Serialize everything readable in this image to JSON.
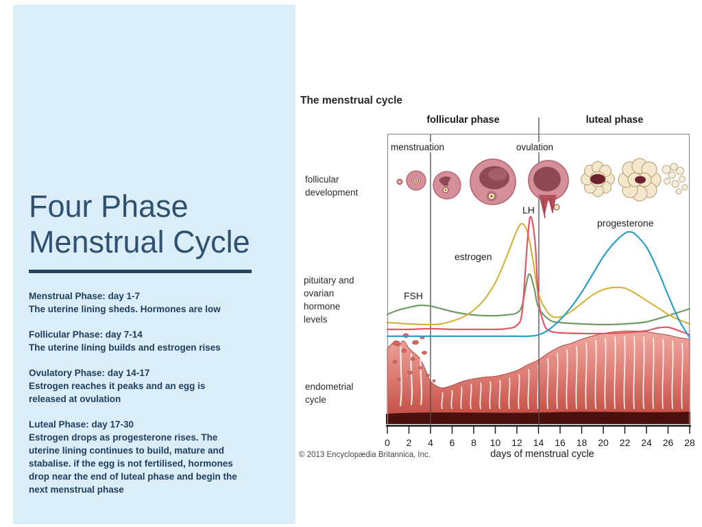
{
  "slide": {
    "panel_bg": "#dbedf9",
    "title_line1": "Four Phase",
    "title_line2": "Menstrual Cycle",
    "title_color": "#2f516d",
    "underline_color": "#22415e",
    "text_color": "#1d3d5b",
    "phases": [
      {
        "heading": "Menstrual Phase: day 1-7",
        "body": "The uterine lining sheds. Hormones are low"
      },
      {
        "heading": "Follicular Phase: day 7-14",
        "body": "The uterine lining builds and estrogen rises"
      },
      {
        "heading": "Ovulatory Phase: day 14-17",
        "body": "Estrogen reaches it peaks and an egg is released at ovulation"
      },
      {
        "heading": "Luteal Phase: day 17-30",
        "body": "Estrogen drops as progesterone rises. The uterine lining continues to build, mature and stabalise. if the egg is not fertilised, hormones drop near the end of luteal phase and begin the next menstrual phase"
      }
    ]
  },
  "diagram": {
    "title": "The menstrual cycle",
    "phase_labels": {
      "follicular": "follicular phase",
      "luteal": "luteal phase"
    },
    "event_labels": {
      "menstruation": "menstruation",
      "ovulation": "ovulation"
    },
    "row_labels": {
      "follicular": "follicular development",
      "hormones": "pituitary and ovarian hormone levels",
      "endometrial": "endometrial cycle"
    },
    "hormone_labels": {
      "fsh": "FSH",
      "estrogen": "estrogen",
      "lh": "LH",
      "progesterone": "progesterone"
    },
    "x_axis_label": "days of menstrual cycle",
    "copyright": "© 2013 Encyclopædia Britannica, Inc."
  },
  "chart_data": {
    "type": "line",
    "title": "The menstrual cycle",
    "xlabel": "days of menstrual cycle",
    "x_range": [
      0,
      28
    ],
    "x_ticks": [
      0,
      2,
      4,
      6,
      8,
      10,
      12,
      14,
      16,
      18,
      20,
      22,
      24,
      26,
      28
    ],
    "ylabel": "relative hormone level (axis unlabeled)",
    "grid": false,
    "event_markers": [
      {
        "day": 4,
        "label": "end of menstruation"
      },
      {
        "day": 14,
        "label": "ovulation"
      }
    ],
    "phases": [
      {
        "label": "follicular phase",
        "range": [
          0,
          14
        ]
      },
      {
        "label": "luteal phase",
        "range": [
          14,
          28
        ]
      }
    ],
    "series": [
      {
        "name": "FSH",
        "color": "#6f9a63",
        "points": [
          [
            0,
            19
          ],
          [
            1,
            22
          ],
          [
            2,
            24
          ],
          [
            3,
            25.5
          ],
          [
            4,
            25
          ],
          [
            5,
            23
          ],
          [
            6,
            21
          ],
          [
            7,
            19.5
          ],
          [
            8,
            18.5
          ],
          [
            9,
            18
          ],
          [
            10,
            18
          ],
          [
            11,
            18.5
          ],
          [
            12,
            20
          ],
          [
            12.5,
            26
          ],
          [
            13.1,
            48
          ],
          [
            13.6,
            38
          ],
          [
            14,
            24
          ],
          [
            15,
            15
          ],
          [
            16,
            13
          ],
          [
            18,
            12
          ],
          [
            20,
            11.5
          ],
          [
            22,
            12
          ],
          [
            24,
            13.5
          ],
          [
            26,
            18
          ],
          [
            28,
            23
          ]
        ]
      },
      {
        "name": "estrogen",
        "color": "#d8b33c",
        "points": [
          [
            0,
            13
          ],
          [
            2,
            12
          ],
          [
            4,
            11.5
          ],
          [
            5,
            12
          ],
          [
            6,
            14
          ],
          [
            7,
            17
          ],
          [
            8,
            22
          ],
          [
            9,
            30
          ],
          [
            10,
            42
          ],
          [
            11,
            60
          ],
          [
            12,
            80
          ],
          [
            12.5,
            85
          ],
          [
            13,
            78
          ],
          [
            13.5,
            58
          ],
          [
            14,
            34
          ],
          [
            15,
            19
          ],
          [
            16,
            17
          ],
          [
            17,
            21
          ],
          [
            18,
            27
          ],
          [
            19,
            33
          ],
          [
            20,
            37
          ],
          [
            21,
            38.5
          ],
          [
            22,
            38
          ],
          [
            23,
            34
          ],
          [
            24,
            29
          ],
          [
            25,
            24
          ],
          [
            26,
            19
          ],
          [
            27,
            15
          ],
          [
            28,
            12
          ]
        ]
      },
      {
        "name": "LH",
        "color": "#e25565",
        "points": [
          [
            0,
            8
          ],
          [
            2,
            8
          ],
          [
            4,
            8.5
          ],
          [
            6,
            8
          ],
          [
            8,
            8
          ],
          [
            10,
            8
          ],
          [
            11,
            8.5
          ],
          [
            12,
            11
          ],
          [
            12.5,
            22
          ],
          [
            13,
            75
          ],
          [
            13.3,
            90
          ],
          [
            13.7,
            70
          ],
          [
            14,
            30
          ],
          [
            14.5,
            12
          ],
          [
            15,
            7
          ],
          [
            16,
            5.5
          ],
          [
            18,
            5
          ],
          [
            20,
            5
          ],
          [
            22,
            5.5
          ],
          [
            24,
            7
          ],
          [
            25,
            9
          ],
          [
            26,
            9.5
          ],
          [
            27,
            7
          ],
          [
            28,
            4
          ]
        ]
      },
      {
        "name": "progesterone",
        "color": "#2a9cc7",
        "points": [
          [
            0,
            3
          ],
          [
            2,
            3
          ],
          [
            4,
            3
          ],
          [
            6,
            3
          ],
          [
            8,
            3
          ],
          [
            10,
            3
          ],
          [
            12,
            3
          ],
          [
            13,
            3
          ],
          [
            14,
            4
          ],
          [
            15,
            8
          ],
          [
            16,
            15
          ],
          [
            17,
            24
          ],
          [
            18,
            35
          ],
          [
            19,
            48
          ],
          [
            20,
            61
          ],
          [
            21,
            71
          ],
          [
            22,
            78
          ],
          [
            22.5,
            79
          ],
          [
            23,
            77
          ],
          [
            24,
            68
          ],
          [
            25,
            52
          ],
          [
            26,
            33
          ],
          [
            27,
            15
          ],
          [
            28,
            2
          ]
        ]
      }
    ],
    "endometrium_thickness": {
      "name": "endometrial lining thickness",
      "color": "#d96b62",
      "points": [
        [
          0,
          77
        ],
        [
          0.5,
          83
        ],
        [
          1,
          80
        ],
        [
          1.5,
          86
        ],
        [
          2,
          77
        ],
        [
          2.5,
          71
        ],
        [
          3,
          65
        ],
        [
          3.5,
          52
        ],
        [
          4,
          37
        ],
        [
          5,
          29
        ],
        [
          6,
          32
        ],
        [
          7,
          37
        ],
        [
          8,
          40
        ],
        [
          9,
          42
        ],
        [
          10,
          43
        ],
        [
          11,
          46
        ],
        [
          12,
          50
        ],
        [
          13,
          57
        ],
        [
          14,
          63
        ],
        [
          15,
          72
        ],
        [
          16,
          79
        ],
        [
          17,
          83
        ],
        [
          18,
          88
        ],
        [
          19,
          92
        ],
        [
          20,
          95
        ],
        [
          21,
          97
        ],
        [
          22,
          98
        ],
        [
          23,
          98
        ],
        [
          24,
          97
        ],
        [
          25,
          95
        ],
        [
          26,
          93
        ],
        [
          27,
          90
        ],
        [
          28,
          88
        ]
      ]
    }
  }
}
